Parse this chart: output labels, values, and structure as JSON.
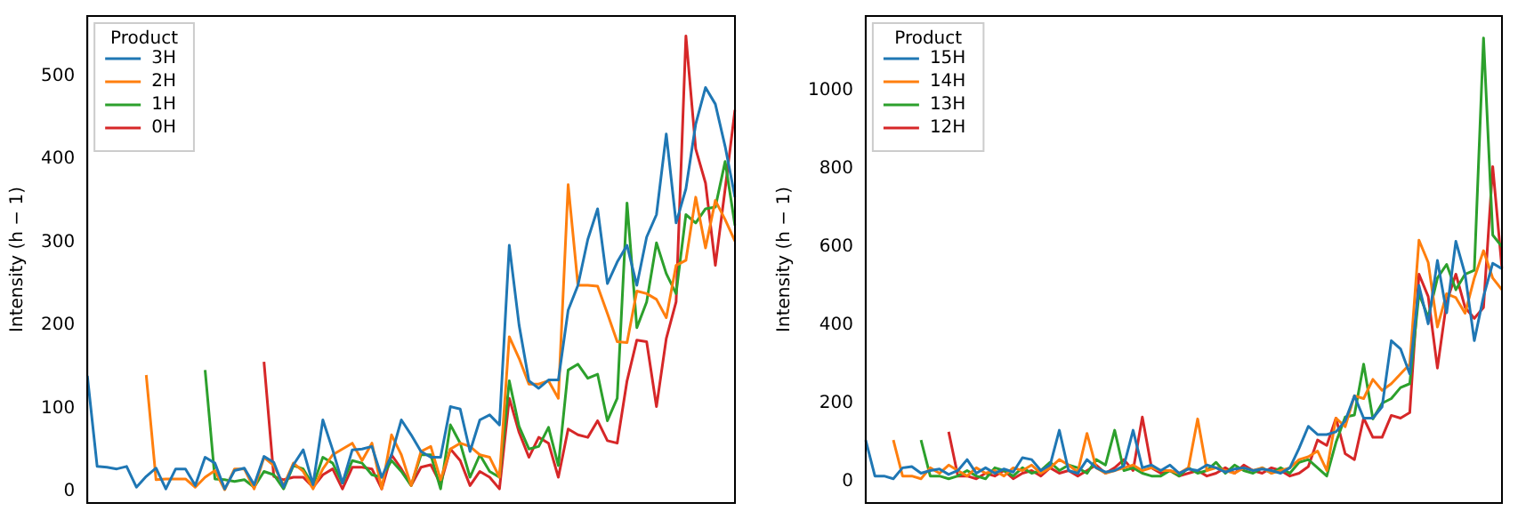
{
  "chart_data": [
    {
      "type": "line",
      "ylabel": "Intensity (h − 1)",
      "legend_title": "Product",
      "legend": "top left",
      "tick_labels": "y",
      "grid": false,
      "ylim": [
        -14,
        572
      ],
      "yticks": [
        0,
        100,
        200,
        300,
        400,
        500
      ],
      "categories": [
        null,
        null,
        null,
        null,
        null,
        null,
        null,
        null,
        null,
        null,
        null,
        null,
        null,
        null,
        null,
        null,
        null,
        null,
        null,
        null,
        null,
        null,
        null,
        null,
        null,
        null,
        null,
        null,
        null,
        null,
        null,
        null,
        null,
        null,
        null,
        null,
        null,
        null,
        null,
        null,
        null,
        null,
        null,
        null,
        null,
        null,
        null,
        null,
        null,
        null,
        null,
        null,
        null,
        null,
        null,
        null,
        null,
        null,
        null,
        null,
        null,
        null,
        null,
        null,
        null,
        null,
        null
      ],
      "series": [
        {
          "name": "3H",
          "color": "#1f77b4",
          "values": [
            139,
            30,
            29,
            27,
            30,
            5,
            18,
            28,
            3,
            27,
            27,
            7,
            41,
            34,
            3,
            25,
            28,
            8,
            42,
            35,
            5,
            32,
            50,
            8,
            86,
            50,
            10,
            50,
            51,
            54,
            17,
            44,
            86,
            68,
            48,
            41,
            41,
            102,
            99,
            48,
            86,
            92,
            80,
            296,
            200,
            133,
            124,
            134,
            134,
            218,
            248,
            303,
            340,
            250,
            276,
            296,
            248,
            306,
            333,
            430,
            323,
            364,
            442,
            486,
            466,
            415,
            354
          ]
        },
        {
          "name": "2H",
          "color": "#ff7f0e",
          "values": [
            null,
            null,
            null,
            null,
            null,
            null,
            140,
            14,
            15,
            15,
            15,
            5,
            17,
            25,
            2,
            27,
            27,
            3,
            41,
            31,
            7,
            34,
            24,
            3,
            27,
            44,
            51,
            58,
            37,
            58,
            3,
            68,
            44,
            7,
            48,
            54,
            14,
            51,
            58,
            54,
            44,
            41,
            17,
            186,
            160,
            129,
            129,
            133,
            112,
            369,
            248,
            248,
            247,
            214,
            180,
            179,
            241,
            238,
            231,
            209,
            272,
            278,
            354,
            293,
            350,
            327,
            301
          ]
        },
        {
          "name": "1H",
          "color": "#2ca02c",
          "values": [
            null,
            null,
            null,
            null,
            null,
            null,
            null,
            null,
            null,
            null,
            null,
            null,
            146,
            15,
            14,
            12,
            14,
            5,
            24,
            20,
            3,
            31,
            27,
            7,
            41,
            34,
            10,
            37,
            34,
            20,
            17,
            37,
            24,
            7,
            44,
            44,
            3,
            80,
            58,
            17,
            44,
            24,
            17,
            133,
            78,
            51,
            54,
            77,
            31,
            146,
            153,
            136,
            141,
            85,
            112,
            347,
            197,
            228,
            299,
            262,
            238,
            333,
            323,
            340,
            342,
            397,
            320
          ]
        },
        {
          "name": "0H",
          "color": "#d62728",
          "values": [
            null,
            null,
            null,
            null,
            null,
            null,
            null,
            null,
            null,
            null,
            null,
            null,
            null,
            null,
            null,
            null,
            null,
            null,
            156,
            18,
            14,
            17,
            17,
            5,
            20,
            27,
            3,
            29,
            29,
            27,
            3,
            44,
            27,
            7,
            29,
            32,
            9,
            51,
            37,
            7,
            24,
            17,
            3,
            112,
            71,
            41,
            65,
            58,
            17,
            75,
            68,
            65,
            85,
            61,
            58,
            133,
            182,
            180,
            102,
            184,
            228,
            548,
            412,
            371,
            272,
            364,
            459
          ]
        }
      ]
    },
    {
      "type": "line",
      "ylabel": "Intensity (h − 1)",
      "legend_title": "Product",
      "legend": "top left",
      "tick_labels": "y",
      "grid": false,
      "ylim": [
        -55,
        1190
      ],
      "yticks": [
        0,
        200,
        400,
        600,
        800,
        1000
      ],
      "categories": [
        null,
        null,
        null,
        null,
        null,
        null,
        null,
        null,
        null,
        null,
        null,
        null,
        null,
        null,
        null,
        null,
        null,
        null,
        null,
        null,
        null,
        null,
        null,
        null,
        null,
        null,
        null,
        null,
        null,
        null,
        null,
        null,
        null,
        null,
        null,
        null,
        null,
        null,
        null,
        null,
        null,
        null,
        null,
        null,
        null,
        null,
        null,
        null,
        null,
        null,
        null,
        null,
        null,
        null,
        null,
        null,
        null,
        null,
        null,
        null,
        null,
        null,
        null,
        null,
        null,
        null,
        null,
        null,
        null,
        null
      ],
      "series": [
        {
          "name": "15H",
          "color": "#1f77b4",
          "values": [
            106,
            14,
            14,
            7,
            35,
            38,
            21,
            28,
            32,
            18,
            28,
            56,
            21,
            35,
            21,
            32,
            24,
            61,
            56,
            28,
            42,
            131,
            28,
            21,
            56,
            35,
            24,
            28,
            40,
            131,
            35,
            42,
            28,
            42,
            21,
            32,
            28,
            42,
            35,
            24,
            32,
            35,
            28,
            32,
            28,
            21,
            35,
            85,
            141,
            120,
            120,
            127,
            155,
            219,
            162,
            162,
            191,
            360,
            339,
            275,
            501,
            403,
            565,
            431,
            614,
            530,
            360,
            473,
            558,
            544
          ]
        },
        {
          "name": "14H",
          "color": "#ff7f0e",
          "values": [
            null,
            null,
            null,
            106,
            14,
            14,
            7,
            35,
            21,
            42,
            28,
            14,
            35,
            21,
            28,
            14,
            35,
            28,
            42,
            21,
            35,
            56,
            42,
            24,
            123,
            35,
            21,
            28,
            35,
            42,
            28,
            35,
            28,
            28,
            21,
            35,
            160,
            28,
            35,
            28,
            21,
            35,
            28,
            35,
            21,
            28,
            35,
            56,
            63,
            78,
            28,
            162,
            140,
            219,
            212,
            261,
            233,
            250,
            275,
            300,
            617,
            560,
            395,
            480,
            470,
            430,
            520,
            590,
            520,
            490
          ]
        },
        {
          "name": "13H",
          "color": "#2ca02c",
          "values": [
            null,
            null,
            null,
            null,
            null,
            null,
            106,
            14,
            14,
            7,
            14,
            28,
            14,
            7,
            35,
            28,
            14,
            35,
            21,
            28,
            49,
            28,
            42,
            35,
            21,
            56,
            42,
            131,
            28,
            35,
            21,
            14,
            14,
            28,
            14,
            35,
            21,
            28,
            49,
            21,
            42,
            28,
            21,
            35,
            21,
            35,
            21,
            49,
            56,
            35,
            14,
            100,
            165,
            170,
            300,
            160,
            200,
            212,
            240,
            250,
            480,
            420,
            520,
            555,
            490,
            530,
            540,
            1134,
            630,
            600
          ]
        },
        {
          "name": "12H",
          "color": "#d62728",
          "values": [
            null,
            null,
            null,
            null,
            null,
            null,
            null,
            null,
            null,
            127,
            14,
            14,
            7,
            21,
            14,
            28,
            7,
            21,
            28,
            14,
            35,
            21,
            28,
            14,
            28,
            42,
            21,
            35,
            56,
            28,
            165,
            35,
            21,
            28,
            14,
            21,
            28,
            14,
            21,
            35,
            21,
            42,
            28,
            21,
            35,
            28,
            14,
            21,
            38,
            106,
            92,
            162,
            71,
            56,
            162,
            113,
            113,
            169,
            162,
            176,
            530,
            473,
            290,
            459,
            530,
            445,
            417,
            445,
            805,
            544
          ]
        }
      ]
    }
  ]
}
